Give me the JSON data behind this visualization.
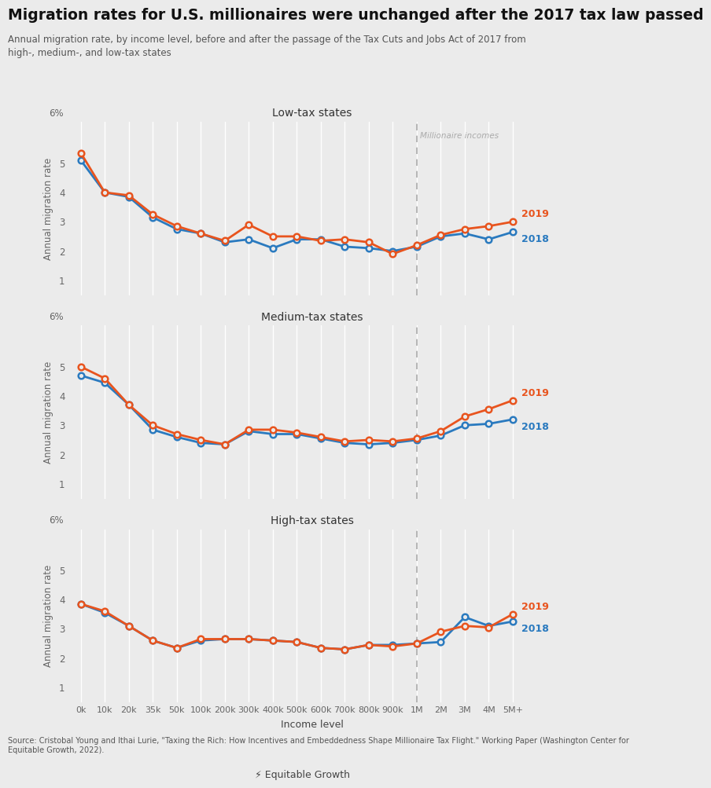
{
  "title": "Migration rates for U.S. millionaires were unchanged after the 2017 tax law passed",
  "subtitle": "Annual migration rate, by income level, before and after the passage of the Tax Cuts and Jobs Act of 2017 from\nhigh-, medium-, and low-tax states",
  "source": "Source: Cristobal Young and Ithai Lurie, \"Taxing the Rich: How Incentives and Embeddedness Shape Millionaire Tax Flight.\" Working Paper (Washington Center for\nEquitable Growth, 2022).",
  "x_labels": [
    "0k",
    "10k",
    "20k",
    "35k",
    "50k",
    "100k",
    "200k",
    "300k",
    "400k",
    "500k",
    "600k",
    "700k",
    "800k",
    "900k",
    "1M",
    "2M",
    "3M",
    "4M",
    "5M+"
  ],
  "millionaire_line_idx": 14,
  "panels": [
    {
      "title": "Low-tax states",
      "y2018": [
        5.1,
        4.0,
        3.85,
        3.15,
        2.75,
        2.6,
        2.3,
        2.4,
        2.1,
        2.4,
        2.4,
        2.15,
        2.1,
        2.0,
        2.15,
        2.5,
        2.6,
        2.4,
        2.65
      ],
      "y2019": [
        5.35,
        4.0,
        3.9,
        3.25,
        2.85,
        2.6,
        2.35,
        2.9,
        2.5,
        2.5,
        2.35,
        2.4,
        2.3,
        1.9,
        2.2,
        2.55,
        2.75,
        2.85,
        3.0
      ]
    },
    {
      "title": "Medium-tax states",
      "y2018": [
        4.7,
        4.45,
        3.7,
        2.85,
        2.6,
        2.4,
        2.35,
        2.8,
        2.7,
        2.7,
        2.55,
        2.4,
        2.35,
        2.4,
        2.5,
        2.65,
        3.0,
        3.05,
        3.2
      ],
      "y2019": [
        5.0,
        4.6,
        3.7,
        3.0,
        2.7,
        2.5,
        2.35,
        2.85,
        2.85,
        2.75,
        2.6,
        2.45,
        2.5,
        2.45,
        2.55,
        2.8,
        3.3,
        3.55,
        3.85
      ]
    },
    {
      "title": "High-tax states",
      "y2018": [
        3.85,
        3.55,
        3.1,
        2.6,
        2.35,
        2.6,
        2.65,
        2.65,
        2.6,
        2.55,
        2.35,
        2.3,
        2.45,
        2.45,
        2.5,
        2.55,
        3.4,
        3.1,
        3.25
      ],
      "y2019": [
        3.85,
        3.6,
        3.1,
        2.6,
        2.35,
        2.65,
        2.65,
        2.65,
        2.6,
        2.55,
        2.35,
        2.3,
        2.45,
        2.4,
        2.5,
        2.9,
        3.1,
        3.05,
        3.5
      ]
    }
  ],
  "color_2018": "#2a7abf",
  "color_2019": "#e8541e",
  "background_color": "#ebebeb",
  "grid_color": "#ffffff",
  "dashed_line_color": "#aaaaaa",
  "millionaire_label": "Millionaire incomes",
  "ylabel": "Annual migration rate",
  "xlabel": "Income level",
  "yticks": [
    1,
    2,
    3,
    4,
    5
  ],
  "ylim": [
    0.5,
    6.4
  ]
}
